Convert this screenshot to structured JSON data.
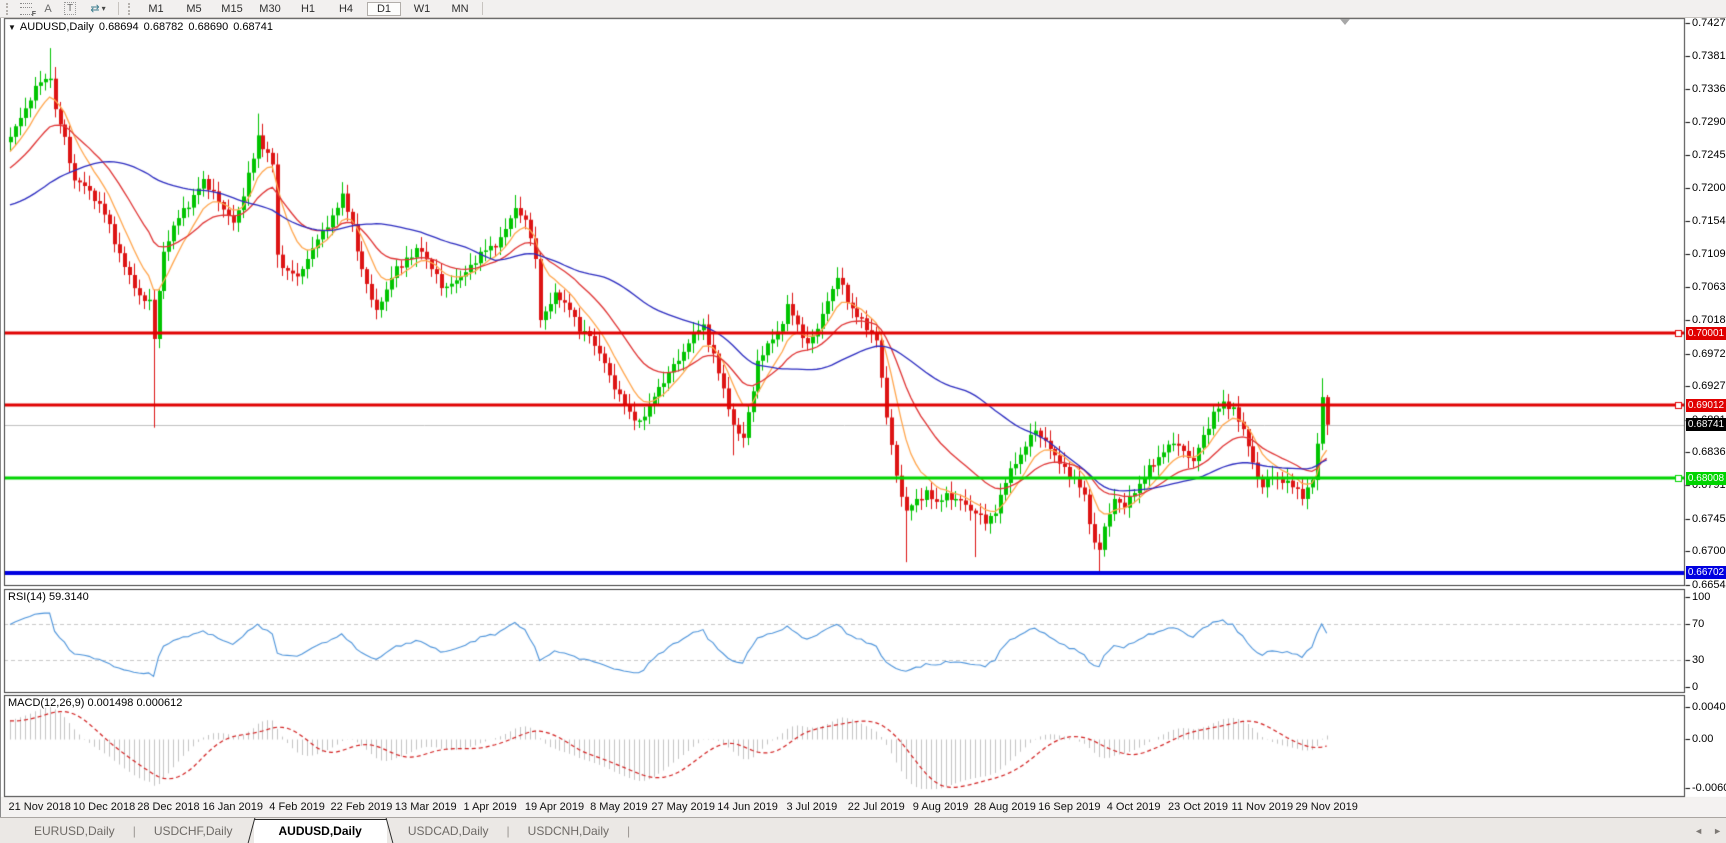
{
  "ui": {
    "toolbar": {
      "icons": [
        {
          "name": "chart-grid-icon",
          "glyph": "F"
        },
        {
          "name": "font-a-icon",
          "glyph": "A"
        },
        {
          "name": "text-label-icon",
          "glyph": "T"
        },
        {
          "name": "pointer-mode-icon",
          "glyph": "⇄",
          "caret": "▾"
        }
      ],
      "timeframes": [
        "M1",
        "M5",
        "M15",
        "M30",
        "H1",
        "H4",
        "D1",
        "W1",
        "MN"
      ],
      "active_timeframe": "D1"
    },
    "title": {
      "collapse_glyph": "▼",
      "symbol": "AUDUSD,Daily",
      "open": "0.68694",
      "high": "0.68782",
      "low": "0.68690",
      "close": "0.68741"
    },
    "tabs": [
      "EURUSD,Daily",
      "USDCHF,Daily",
      "AUDUSD,Daily",
      "USDCAD,Daily",
      "USDCNH,Daily"
    ],
    "active_tab": "AUDUSD,Daily",
    "tab_separator": "|",
    "tab_scroll_left": "◄",
    "tab_scroll_right": "►"
  },
  "chart_data": {
    "type": "candlestick",
    "symbol": "AUDUSD",
    "timeframe": "Daily",
    "title": "AUDUSD,Daily 0.68694 0.68782 0.68690 0.68741",
    "colors": {
      "up": "#00c400",
      "down": "#dd1414",
      "ma_fast": "#ffa64d",
      "ma_mid": "#e03434",
      "ma_slow": "#2b2bc0",
      "level_red": "#e00000",
      "level_green": "#00d400",
      "level_blue": "#0000e0",
      "current_line": "#c0c0c0",
      "current_badge": "#000000",
      "rsi_line": "#4d94db",
      "macd_hist": "#c4c4c4",
      "macd_signal": "#d22020",
      "dashed_level": "#c8c8c8",
      "panel_border": "#3c3c3c"
    },
    "y_axis_ticks": [
      "0.74270",
      "0.73810",
      "0.73360",
      "0.72900",
      "0.72450",
      "0.72000",
      "0.71540",
      "0.71090",
      "0.70630",
      "0.70180",
      "0.69720",
      "0.69270",
      "0.68810",
      "0.68360",
      "0.67910",
      "0.67450",
      "0.67000",
      "0.66540"
    ],
    "x_axis_dates": [
      "21 Nov 2018",
      "10 Dec 2018",
      "28 Dec 2018",
      "16 Jan 2019",
      "4 Feb 2019",
      "22 Feb 2019",
      "13 Mar 2019",
      "1 Apr 2019",
      "19 Apr 2019",
      "8 May 2019",
      "27 May 2019",
      "14 Jun 2019",
      "3 Jul 2019",
      "22 Jul 2019",
      "9 Aug 2019",
      "28 Aug 2019",
      "16 Sep 2019",
      "4 Oct 2019",
      "23 Oct 2019",
      "11 Nov 2019",
      "29 Nov 2019"
    ],
    "levels": [
      {
        "name": "resistance-1",
        "price": 0.70001,
        "label": "0.70001",
        "color": "#e00000",
        "width": 3,
        "handle": true
      },
      {
        "name": "resistance-2",
        "price": 0.69012,
        "label": "0.69012",
        "color": "#e00000",
        "width": 3,
        "handle": true
      },
      {
        "name": "support-1",
        "price": 0.68008,
        "label": "0.68008",
        "color": "#00d400",
        "width": 3,
        "handle": true
      },
      {
        "name": "support-2",
        "price": 0.66702,
        "label": "0.66702",
        "color": "#0000e0",
        "width": 4,
        "handle": false
      }
    ],
    "current_price": {
      "value": 0.68741,
      "label": "0.68741"
    },
    "n_candles": 267,
    "price_path_anchors": [
      [
        -60,
        0.718
      ],
      [
        -50,
        0.7235
      ],
      [
        -40,
        0.715
      ],
      [
        -30,
        0.708
      ],
      [
        -20,
        0.718
      ],
      [
        -12,
        0.7245
      ],
      [
        -6,
        0.7225
      ],
      [
        0,
        0.727
      ],
      [
        2,
        0.7296
      ],
      [
        4,
        0.732
      ],
      [
        6,
        0.7345
      ],
      [
        8,
        0.735
      ],
      [
        9,
        0.7308
      ],
      [
        11,
        0.727
      ],
      [
        13,
        0.721
      ],
      [
        16,
        0.7196
      ],
      [
        18,
        0.7178
      ],
      [
        20,
        0.715
      ],
      [
        22,
        0.711
      ],
      [
        24,
        0.708
      ],
      [
        26,
        0.7052
      ],
      [
        28,
        0.7046
      ],
      [
        29,
        0.6992
      ],
      [
        30,
        0.7058
      ],
      [
        31,
        0.7112
      ],
      [
        33,
        0.7148
      ],
      [
        35,
        0.7172
      ],
      [
        37,
        0.719
      ],
      [
        39,
        0.7212
      ],
      [
        41,
        0.7195
      ],
      [
        43,
        0.717
      ],
      [
        45,
        0.7152
      ],
      [
        47,
        0.7188
      ],
      [
        49,
        0.724
      ],
      [
        50,
        0.7272
      ],
      [
        52,
        0.7248
      ],
      [
        53,
        0.7232
      ],
      [
        54,
        0.7108
      ],
      [
        56,
        0.7086
      ],
      [
        58,
        0.7078
      ],
      [
        60,
        0.7102
      ],
      [
        63,
        0.7142
      ],
      [
        65,
        0.7162
      ],
      [
        67,
        0.7192
      ],
      [
        69,
        0.715
      ],
      [
        71,
        0.7088
      ],
      [
        73,
        0.7046
      ],
      [
        74,
        0.7032
      ],
      [
        76,
        0.706
      ],
      [
        78,
        0.7092
      ],
      [
        80,
        0.7104
      ],
      [
        83,
        0.7112
      ],
      [
        85,
        0.7088
      ],
      [
        87,
        0.7062
      ],
      [
        89,
        0.7068
      ],
      [
        91,
        0.7078
      ],
      [
        93,
        0.7094
      ],
      [
        95,
        0.7112
      ],
      [
        97,
        0.712
      ],
      [
        99,
        0.7132
      ],
      [
        101,
        0.7158
      ],
      [
        102,
        0.7172
      ],
      [
        104,
        0.7156
      ],
      [
        106,
        0.7102
      ],
      [
        107,
        0.7018
      ],
      [
        109,
        0.704
      ],
      [
        110,
        0.7056
      ],
      [
        112,
        0.7042
      ],
      [
        113,
        0.7032
      ],
      [
        115,
        0.7002
      ],
      [
        117,
        0.6996
      ],
      [
        119,
        0.6972
      ],
      [
        121,
        0.6942
      ],
      [
        123,
        0.6916
      ],
      [
        125,
        0.6892
      ],
      [
        127,
        0.688
      ],
      [
        129,
        0.6902
      ],
      [
        131,
        0.6926
      ],
      [
        133,
        0.6946
      ],
      [
        135,
        0.6962
      ],
      [
        137,
        0.6986
      ],
      [
        139,
        0.7004
      ],
      [
        140,
        0.7012
      ],
      [
        142,
        0.6972
      ],
      [
        144,
        0.6924
      ],
      [
        146,
        0.6874
      ],
      [
        148,
        0.6856
      ],
      [
        150,
        0.692
      ],
      [
        151,
        0.6962
      ],
      [
        153,
        0.6986
      ],
      [
        155,
        0.7002
      ],
      [
        157,
        0.704
      ],
      [
        159,
        0.7012
      ],
      [
        161,
        0.6986
      ],
      [
        163,
        0.7006
      ],
      [
        165,
        0.7044
      ],
      [
        167,
        0.7076
      ],
      [
        169,
        0.7042
      ],
      [
        171,
        0.7022
      ],
      [
        173,
        0.7004
      ],
      [
        175,
        0.699
      ],
      [
        177,
        0.6884
      ],
      [
        179,
        0.6804
      ],
      [
        181,
        0.6756
      ],
      [
        183,
        0.6772
      ],
      [
        185,
        0.6784
      ],
      [
        187,
        0.6768
      ],
      [
        189,
        0.678
      ],
      [
        191,
        0.6772
      ],
      [
        193,
        0.6764
      ],
      [
        195,
        0.6752
      ],
      [
        197,
        0.6738
      ],
      [
        199,
        0.6752
      ],
      [
        201,
        0.6794
      ],
      [
        203,
        0.682
      ],
      [
        205,
        0.6844
      ],
      [
        207,
        0.6866
      ],
      [
        209,
        0.6852
      ],
      [
        211,
        0.6832
      ],
      [
        213,
        0.6816
      ],
      [
        215,
        0.6802
      ],
      [
        217,
        0.6778
      ],
      [
        219,
        0.6712
      ],
      [
        220,
        0.6702
      ],
      [
        221,
        0.6734
      ],
      [
        223,
        0.6772
      ],
      [
        225,
        0.676
      ],
      [
        227,
        0.678
      ],
      [
        229,
        0.6802
      ],
      [
        231,
        0.6818
      ],
      [
        233,
        0.6836
      ],
      [
        235,
        0.6848
      ],
      [
        237,
        0.6838
      ],
      [
        239,
        0.6824
      ],
      [
        241,
        0.686
      ],
      [
        243,
        0.6892
      ],
      [
        245,
        0.6906
      ],
      [
        247,
        0.6898
      ],
      [
        249,
        0.6868
      ],
      [
        251,
        0.6822
      ],
      [
        253,
        0.6788
      ],
      [
        255,
        0.6802
      ],
      [
        257,
        0.6794
      ],
      [
        259,
        0.6788
      ],
      [
        261,
        0.6772
      ],
      [
        263,
        0.6798
      ],
      [
        264,
        0.6848
      ],
      [
        265,
        0.6912
      ],
      [
        266,
        0.68741
      ]
    ],
    "wick_low_overrides": {
      "29": 0.687,
      "54": 0.709,
      "146": 0.6832,
      "181": 0.6685,
      "195": 0.6692,
      "220": 0.66702
    },
    "wick_high_overrides": {
      "8": 0.7392,
      "50": 0.7302,
      "102": 0.719,
      "140": 0.702,
      "167": 0.7082,
      "207": 0.6878,
      "245": 0.6916,
      "265": 0.6938
    },
    "moving_averages": [
      {
        "name": "fast",
        "type": "ema",
        "period": 8,
        "color": "#ffa64d"
      },
      {
        "name": "mid",
        "type": "ema",
        "period": 20,
        "color": "#e03434"
      },
      {
        "name": "slow",
        "type": "sma",
        "period": 45,
        "color": "#2b2bc0"
      }
    ],
    "rsi": {
      "label": "RSI(14)",
      "current": "59.3140",
      "period": 14,
      "axis": [
        "100",
        "70",
        "30",
        "0"
      ],
      "axis_values": [
        100,
        70,
        30,
        0
      ],
      "dashed_levels": [
        70,
        30
      ],
      "range": [
        0,
        100
      ]
    },
    "macd": {
      "label": "MACD(12,26,9)",
      "current_main": "0.001498",
      "current_signal": "0.000612",
      "fast": 12,
      "slow": 26,
      "signal": 9,
      "axis": [
        "0.004017",
        "0.00",
        "-0.006097"
      ],
      "axis_values": [
        0.004017,
        0,
        -0.006097
      ]
    }
  }
}
